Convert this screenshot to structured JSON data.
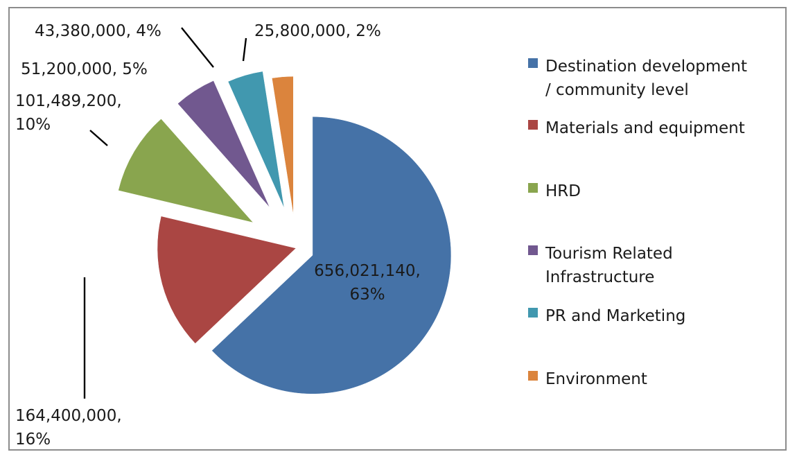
{
  "chart_data": {
    "type": "pie",
    "categories": [
      "Destination development / community level",
      "Materials and equipment",
      "HRD",
      "Tourism Related Infrastructure",
      "PR and Marketing",
      "Environment"
    ],
    "values": [
      656021140,
      164400000,
      101489200,
      51200000,
      43380000,
      25800000
    ],
    "percent_labels": [
      "63%",
      "16%",
      "10%",
      "5%",
      "4%",
      "2%"
    ],
    "data_labels": [
      [
        "656,021,140,",
        "63%"
      ],
      [
        "164,400,000,",
        "16%"
      ],
      [
        "101,489,200,",
        "10%"
      ],
      [
        "51,200,000, 5%"
      ],
      [
        "43,380,000, 4%"
      ],
      [
        "25,800,000, 2%"
      ]
    ],
    "legend": [
      [
        "Destination development",
        "/ community level"
      ],
      [
        "Materials and equipment"
      ],
      [
        "HRD"
      ],
      [
        "Tourism Related",
        "Infrastructure"
      ],
      [
        "PR and Marketing"
      ],
      [
        "Environment"
      ]
    ],
    "colors": [
      "#4572a7",
      "#aa4643",
      "#89a54e",
      "#71588f",
      "#4198af",
      "#db843d"
    ],
    "exploded": true,
    "legend_position": "right",
    "title": "",
    "xlabel": "",
    "ylabel": ""
  }
}
